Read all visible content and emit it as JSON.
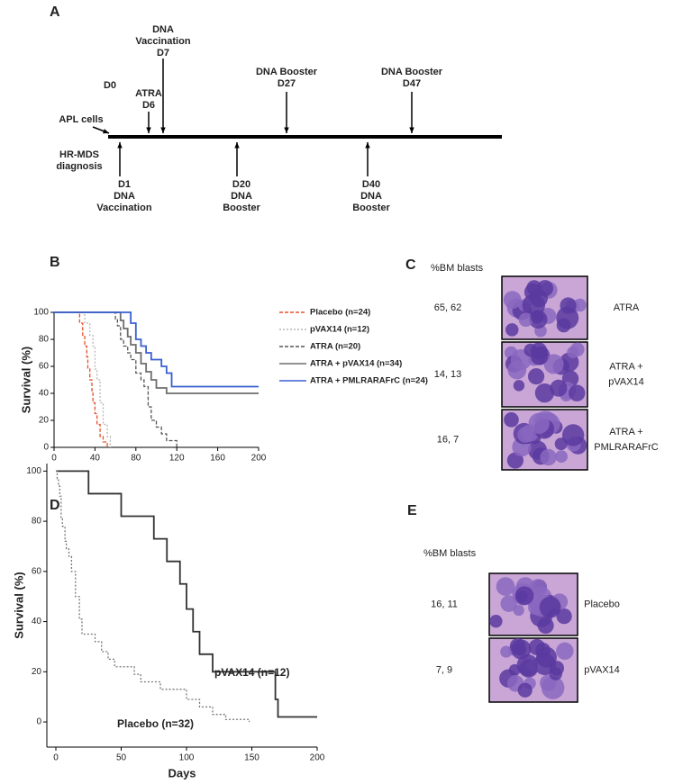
{
  "panel_labels": [
    "A",
    "B",
    "C",
    "D",
    "E"
  ],
  "timeline": {
    "labels": [
      {
        "lines": [
          "DNA",
          "Vaccination",
          "D7"
        ]
      },
      {
        "lines": [
          "D0"
        ]
      },
      {
        "lines": [
          "ATRA",
          "D6"
        ]
      },
      {
        "lines": [
          "DNA Booster",
          "D27"
        ]
      },
      {
        "lines": [
          "DNA Booster",
          "D47"
        ]
      },
      {
        "lines": [
          "APL cells"
        ]
      },
      {
        "lines": [
          "HR-MDS",
          "diagnosis"
        ]
      },
      {
        "lines": [
          "D1",
          "DNA",
          "Vaccination"
        ]
      },
      {
        "lines": [
          "D20",
          "DNA",
          "Booster"
        ]
      },
      {
        "lines": [
          "D40",
          "DNA",
          "Booster"
        ]
      }
    ]
  },
  "panel_c": {
    "blasts_label": "%BM blasts",
    "rows": [
      {
        "blasts": "65, 62",
        "group": [
          "ATRA"
        ]
      },
      {
        "blasts": "14, 13",
        "group": [
          "ATRA +",
          "pVAX14"
        ]
      },
      {
        "blasts": "16, 7",
        "group": [
          "ATRA +",
          "PMLRARAFrC"
        ]
      }
    ]
  },
  "panel_e": {
    "blasts_label": "%BM blasts",
    "rows": [
      {
        "blasts": "16, 11",
        "group": [
          "Placebo"
        ]
      },
      {
        "blasts": "7, 9",
        "group": [
          "pVAX14"
        ]
      }
    ]
  },
  "chart_data": [
    {
      "type": "line",
      "ylabel": "Survival (%)",
      "xlim": [
        0,
        200
      ],
      "xticks": [
        0,
        40,
        80,
        120,
        160,
        200
      ],
      "ylim": [
        0,
        100
      ],
      "yticks": [
        0,
        20,
        40,
        60,
        80,
        100
      ],
      "legend": "right",
      "series": [
        {
          "name": "Placebo (n=24)",
          "color": "#e8502a",
          "dash": "dashed",
          "x": [
            0,
            25,
            28,
            30,
            32,
            33,
            35,
            37,
            38,
            40,
            42,
            45,
            48,
            52
          ],
          "values": [
            100,
            92,
            83,
            75,
            67,
            58,
            50,
            42,
            33,
            25,
            17,
            8,
            4,
            0
          ]
        },
        {
          "name": "pVAX14 (n=12)",
          "color": "#b5b5b5",
          "dash": "dotted",
          "x": [
            0,
            30,
            35,
            38,
            40,
            42,
            45,
            48,
            52,
            55
          ],
          "values": [
            100,
            92,
            83,
            75,
            58,
            50,
            33,
            17,
            8,
            0
          ]
        },
        {
          "name": "ATRA (n=20)",
          "color": "#555555",
          "dash": "dashed",
          "x": [
            0,
            60,
            62,
            65,
            68,
            72,
            75,
            80,
            85,
            88,
            92,
            95,
            100,
            105,
            110,
            120
          ],
          "values": [
            100,
            95,
            90,
            80,
            75,
            70,
            65,
            55,
            50,
            45,
            30,
            20,
            15,
            10,
            5,
            0
          ]
        },
        {
          "name": "ATRA + pVAX14 (n=34)",
          "color": "#6e6e6e",
          "dash": "solid",
          "x": [
            0,
            65,
            68,
            72,
            75,
            80,
            85,
            90,
            95,
            100,
            110,
            200
          ],
          "values": [
            100,
            94,
            88,
            82,
            76,
            70,
            62,
            56,
            50,
            44,
            40,
            40
          ]
        },
        {
          "name": "ATRA + PMLRARAFrC (n=24)",
          "color": "#3a5fd0",
          "dash": "solid",
          "x": [
            0,
            75,
            80,
            85,
            90,
            95,
            105,
            110,
            115,
            200
          ],
          "values": [
            100,
            92,
            80,
            75,
            70,
            65,
            60,
            55,
            45,
            45
          ]
        }
      ]
    },
    {
      "type": "line",
      "ylabel": "Survival (%)",
      "xlabel": "Days",
      "xlim": [
        0,
        200
      ],
      "xticks": [
        0,
        50,
        100,
        150,
        200
      ],
      "ylim": [
        -5,
        103
      ],
      "yticks": [
        0,
        20,
        40,
        60,
        80,
        100
      ],
      "series": [
        {
          "name": "pVAX14 (n=12)",
          "color": "#333333",
          "dash": "solid",
          "x": [
            0,
            25,
            50,
            75,
            85,
            95,
            100,
            105,
            110,
            120,
            168,
            170,
            200
          ],
          "values": [
            100,
            91,
            82,
            73,
            64,
            55,
            45,
            36,
            27,
            20,
            9,
            2,
            2
          ]
        },
        {
          "name": "Placebo (n=32)",
          "color": "#777777",
          "dash": "dotted",
          "x": [
            0,
            1,
            2,
            3,
            4,
            5,
            7,
            8,
            10,
            12,
            15,
            18,
            20,
            30,
            35,
            40,
            45,
            60,
            65,
            80,
            100,
            110,
            120,
            130,
            148
          ],
          "values": [
            100,
            97,
            94,
            90,
            81,
            78,
            72,
            69,
            66,
            60,
            50,
            41,
            35,
            32,
            28,
            25,
            22,
            19,
            16,
            13,
            9,
            6,
            3,
            1,
            0
          ]
        }
      ]
    }
  ]
}
